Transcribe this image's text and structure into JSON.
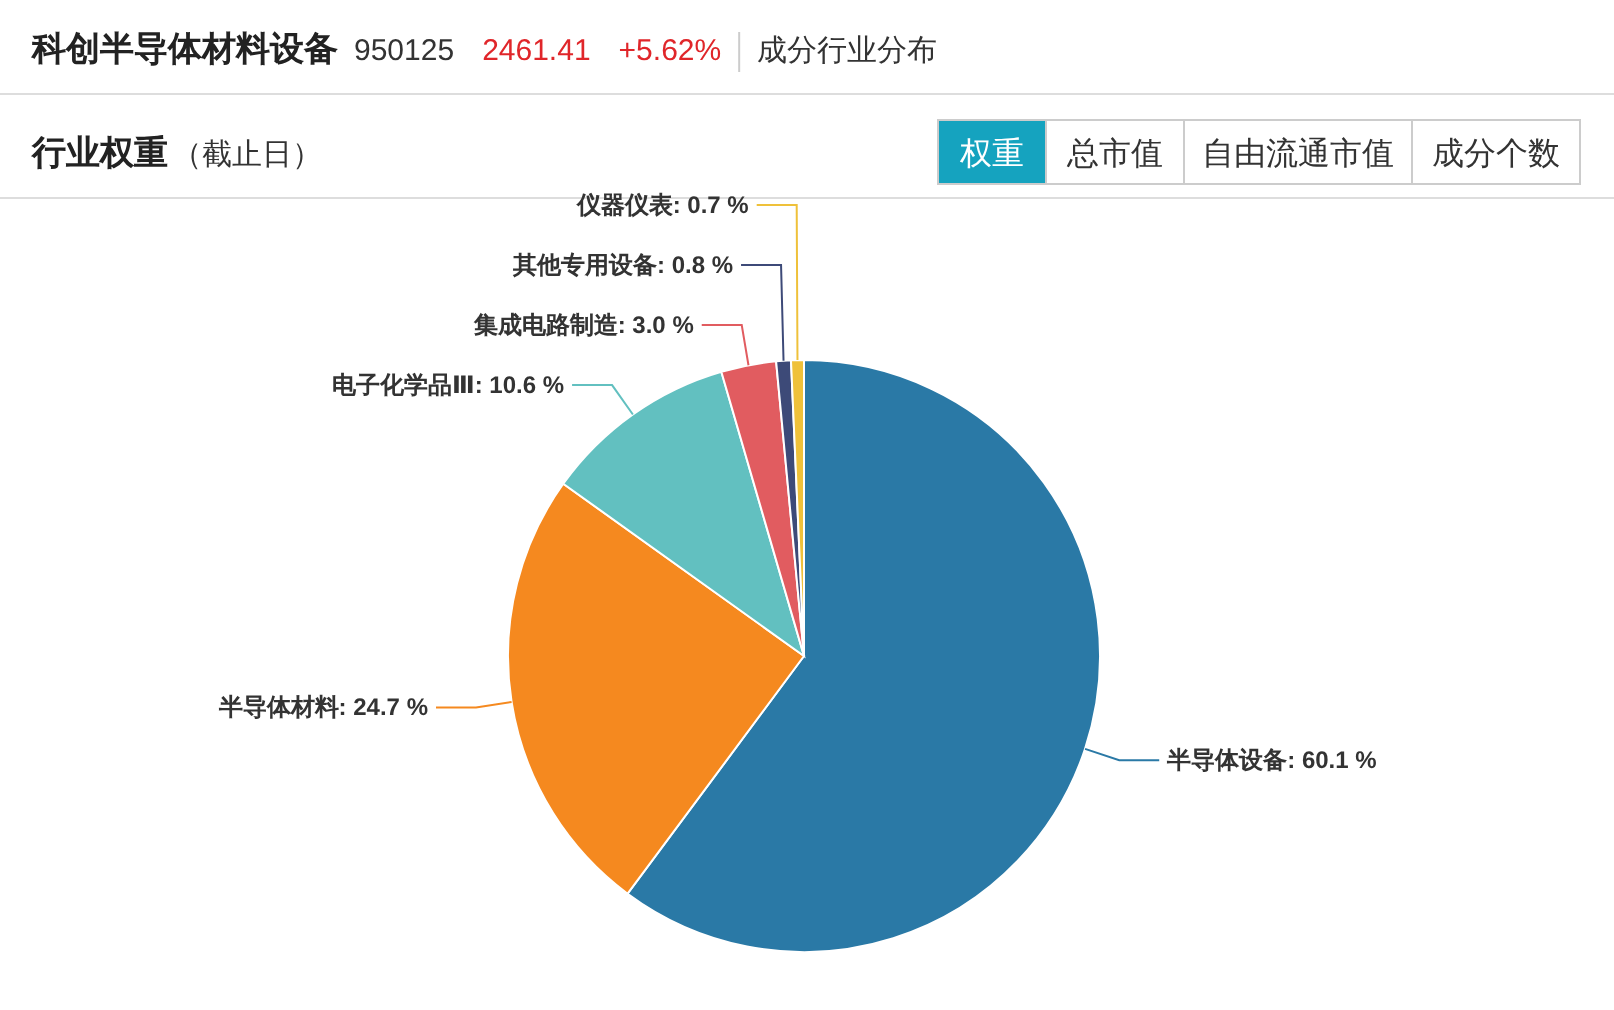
{
  "chart_data": {
    "type": "pie",
    "title": "行业权重",
    "subtitle": "（截止日）",
    "annotations": [
      "科创半导体材料设备",
      "950125",
      "2461.41",
      "+5.62%",
      "成分行业分布",
      "权重",
      "总市值",
      "自由流通市值",
      "成分个数"
    ],
    "categories": [
      "半导体设备",
      "半导体材料",
      "电子化学品Ⅲ",
      "集成电路制造",
      "其他专用设备",
      "仪器仪表"
    ],
    "values": [
      60.1,
      24.7,
      10.6,
      3.0,
      0.8,
      0.7
    ],
    "value_labels": [
      "60.1 %",
      "24.7 %",
      "10.6 %",
      "3.0 %",
      "0.8 %",
      "0.7 %"
    ],
    "colors": [
      "#2a79a6",
      "#f5891f",
      "#62c0c0",
      "#e15c60",
      "#3d4a78",
      "#efc13a"
    ],
    "legend": false
  }
}
